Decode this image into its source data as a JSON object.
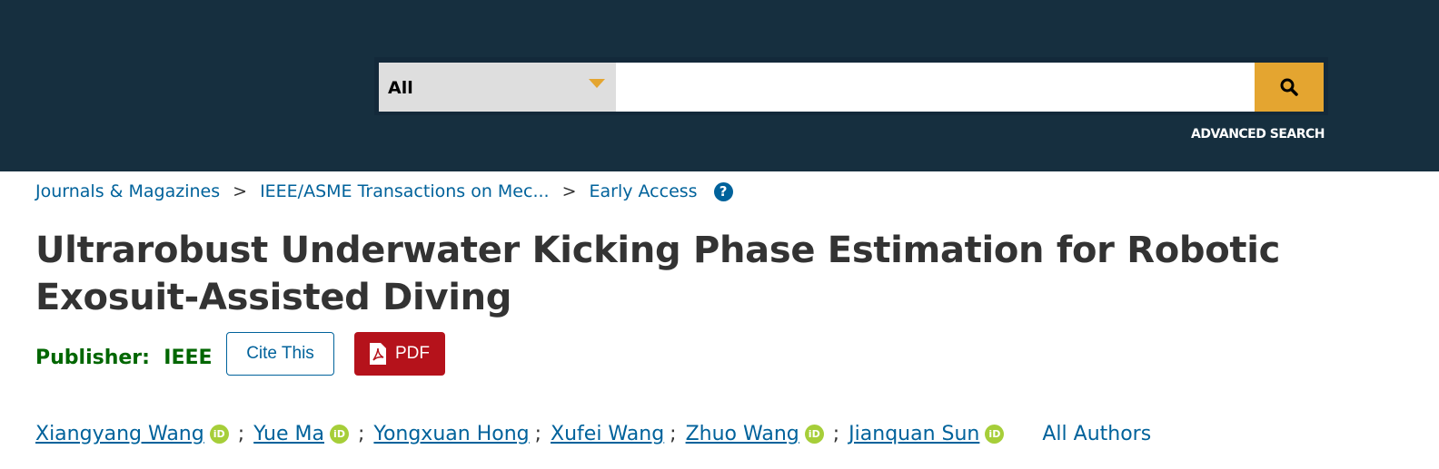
{
  "search": {
    "scope": "All",
    "placeholder": "",
    "advanced": "ADVANCED SEARCH"
  },
  "breadcrumb": [
    "Journals & Magazines",
    "IEEE/ASME Transactions on Mec...",
    "Early Access"
  ],
  "breadcrumb_sep": ">",
  "help": "?",
  "title": "Ultrarobust Underwater Kicking Phase Estimation for Robotic Exosuit-Assisted Diving",
  "publisher": {
    "label": "Publisher:",
    "value": "IEEE"
  },
  "buttons": {
    "cite": "Cite This",
    "pdf": "PDF"
  },
  "authors": [
    {
      "name": "Xiangyang Wang",
      "orcid": true
    },
    {
      "name": "Yue Ma",
      "orcid": true
    },
    {
      "name": "Yongxuan Hong",
      "orcid": false
    },
    {
      "name": "Xufei Wang",
      "orcid": false
    },
    {
      "name": "Zhuo Wang",
      "orcid": true
    },
    {
      "name": "Jianquan Sun",
      "orcid": true
    }
  ],
  "orcid_label": "iD",
  "all_authors": "All Authors",
  "colors": {
    "header": "#162f3f",
    "accent": "#e4a530",
    "link": "#00629b",
    "pdf": "#b5121b",
    "publisher": "#006600"
  }
}
